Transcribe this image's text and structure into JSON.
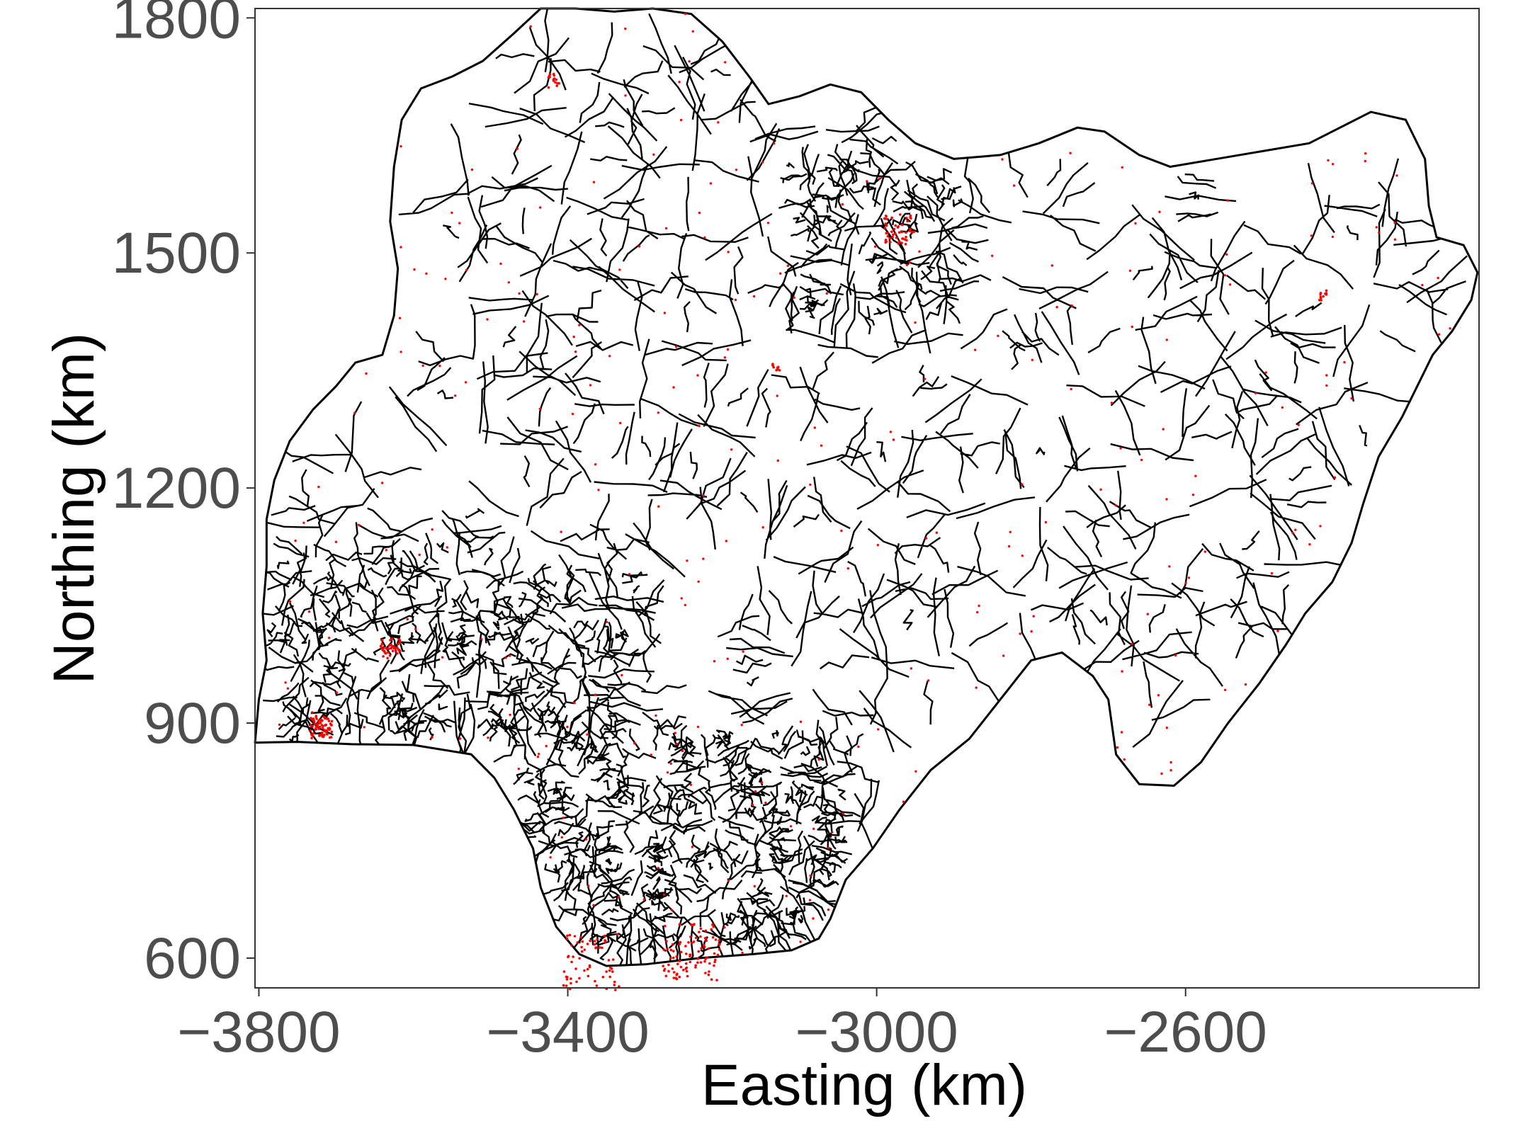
{
  "chart_data": {
    "type": "scatter",
    "description_kind": "map-with-points",
    "xlabel": "Easting (km)",
    "ylabel": "Northing (km)",
    "x_ticks": [
      -3800,
      -3400,
      -3000,
      -2600
    ],
    "x_tick_labels": [
      "−3800",
      "−3400",
      "−3000",
      "−2600"
    ],
    "y_ticks": [
      600,
      900,
      1200,
      1500,
      1800
    ],
    "y_tick_labels": [
      "600",
      "900",
      "1200",
      "1500",
      "1800"
    ],
    "xlim": [
      -3805,
      -2220
    ],
    "ylim": [
      562,
      1812
    ],
    "grid": false,
    "legend": "none",
    "colors": {
      "boundary": "#000000",
      "points": "#ff0000",
      "frame": "#333333",
      "tick_label": "#4d4d4d"
    },
    "outline_lonlat_km": [
      [
        -3805,
        875
      ],
      [
        -3750,
        876
      ],
      [
        -3680,
        873
      ],
      [
        -3600,
        872
      ],
      [
        -3525,
        860
      ],
      [
        -3495,
        830
      ],
      [
        -3470,
        790
      ],
      [
        -3445,
        740
      ],
      [
        -3435,
        690
      ],
      [
        -3415,
        640
      ],
      [
        -3385,
        605
      ],
      [
        -3350,
        590
      ],
      [
        -3300,
        592
      ],
      [
        -3230,
        600
      ],
      [
        -3160,
        605
      ],
      [
        -3110,
        610
      ],
      [
        -3075,
        625
      ],
      [
        -3060,
        650
      ],
      [
        -3040,
        700
      ],
      [
        -3005,
        740
      ],
      [
        -2970,
        790
      ],
      [
        -2930,
        840
      ],
      [
        -2880,
        880
      ],
      [
        -2840,
        930
      ],
      [
        -2800,
        980
      ],
      [
        -2760,
        990
      ],
      [
        -2720,
        960
      ],
      [
        -2700,
        930
      ],
      [
        -2690,
        860
      ],
      [
        -2660,
        822
      ],
      [
        -2615,
        820
      ],
      [
        -2580,
        850
      ],
      [
        -2545,
        900
      ],
      [
        -2505,
        950
      ],
      [
        -2470,
        1000
      ],
      [
        -2445,
        1040
      ],
      [
        -2410,
        1080
      ],
      [
        -2385,
        1130
      ],
      [
        -2370,
        1180
      ],
      [
        -2350,
        1240
      ],
      [
        -2320,
        1290
      ],
      [
        -2300,
        1330
      ],
      [
        -2280,
        1370
      ],
      [
        -2255,
        1400
      ],
      [
        -2230,
        1440
      ],
      [
        -2222,
        1475
      ],
      [
        -2240,
        1510
      ],
      [
        -2275,
        1520
      ],
      [
        -2285,
        1560
      ],
      [
        -2290,
        1620
      ],
      [
        -2315,
        1670
      ],
      [
        -2360,
        1680
      ],
      [
        -2400,
        1660
      ],
      [
        -2440,
        1640
      ],
      [
        -2500,
        1630
      ],
      [
        -2560,
        1620
      ],
      [
        -2620,
        1610
      ],
      [
        -2660,
        1625
      ],
      [
        -2705,
        1655
      ],
      [
        -2740,
        1660
      ],
      [
        -2790,
        1640
      ],
      [
        -2840,
        1625
      ],
      [
        -2900,
        1620
      ],
      [
        -2950,
        1640
      ],
      [
        -2985,
        1670
      ],
      [
        -3020,
        1705
      ],
      [
        -3060,
        1715
      ],
      [
        -3100,
        1700
      ],
      [
        -3140,
        1690
      ],
      [
        -3165,
        1725
      ],
      [
        -3200,
        1770
      ],
      [
        -3240,
        1805
      ],
      [
        -3290,
        1812
      ],
      [
        -3340,
        1808
      ],
      [
        -3390,
        1812
      ],
      [
        -3435,
        1812
      ],
      [
        -3470,
        1780
      ],
      [
        -3510,
        1745
      ],
      [
        -3550,
        1725
      ],
      [
        -3590,
        1710
      ],
      [
        -3615,
        1670
      ],
      [
        -3625,
        1610
      ],
      [
        -3630,
        1540
      ],
      [
        -3620,
        1480
      ],
      [
        -3625,
        1420
      ],
      [
        -3640,
        1370
      ],
      [
        -3675,
        1360
      ],
      [
        -3700,
        1330
      ],
      [
        -3730,
        1300
      ],
      [
        -3760,
        1260
      ],
      [
        -3780,
        1210
      ],
      [
        -3790,
        1160
      ],
      [
        -3790,
        1100
      ],
      [
        -3795,
        1040
      ],
      [
        -3790,
        980
      ],
      [
        -3800,
        930
      ],
      [
        -3805,
        875
      ]
    ]
  }
}
